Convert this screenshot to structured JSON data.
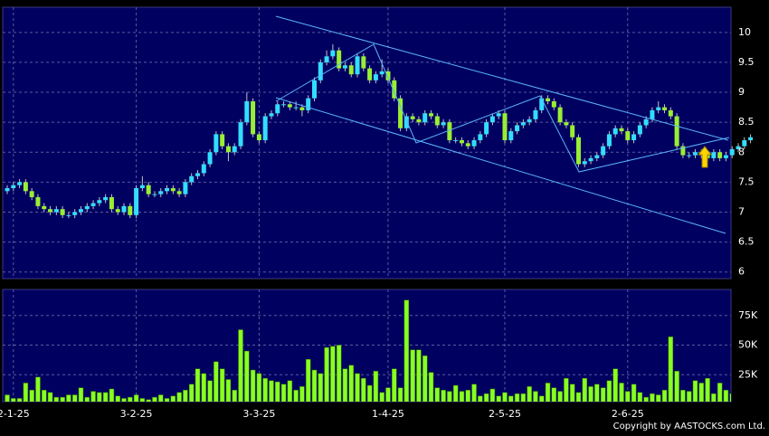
{
  "chart_data": [
    {
      "type": "candlestick",
      "up_color": "#33ddff",
      "down_color": "#99ee33",
      "open": [
        7.35,
        7.4,
        7.45,
        7.5,
        7.35,
        7.25,
        7.1,
        7.05,
        7.0,
        7.05,
        6.95,
        6.95,
        7.0,
        7.05,
        7.1,
        7.15,
        7.2,
        7.25,
        7.05,
        7.0,
        7.1,
        6.95,
        7.4,
        7.45,
        7.3,
        7.3,
        7.35,
        7.4,
        7.35,
        7.3,
        7.5,
        7.6,
        7.65,
        7.8,
        8.0,
        8.3,
        8.1,
        8.0,
        8.1,
        8.5,
        8.85,
        8.3,
        8.2,
        8.6,
        8.65,
        8.8,
        8.8,
        8.75,
        8.75,
        8.7,
        8.9,
        9.2,
        9.5,
        9.6,
        9.7,
        9.4,
        9.45,
        9.3,
        9.6,
        9.4,
        9.2,
        9.3,
        9.35,
        9.2,
        8.9,
        8.4,
        8.6,
        8.55,
        8.5,
        8.65,
        8.6,
        8.45,
        8.5,
        8.2,
        8.2,
        8.15,
        8.1,
        8.2,
        8.3,
        8.5,
        8.6,
        8.65,
        8.2,
        8.35,
        8.45,
        8.5,
        8.55,
        8.7,
        8.9,
        8.85,
        8.75,
        8.5,
        8.45,
        8.25,
        7.8,
        7.85,
        7.9,
        7.95,
        8.1,
        8.3,
        8.4,
        8.35,
        8.2,
        8.3,
        8.45,
        8.55,
        8.7,
        8.75,
        8.7,
        8.6,
        8.1,
        7.95,
        7.95,
        8.0,
        7.95,
        7.9,
        8.0,
        7.9,
        7.95,
        8.05,
        8.1,
        8.2
      ],
      "high": [
        7.45,
        7.5,
        7.55,
        7.55,
        7.4,
        7.3,
        7.15,
        7.1,
        7.1,
        7.1,
        7.0,
        7.05,
        7.1,
        7.15,
        7.2,
        7.25,
        7.3,
        7.3,
        7.1,
        7.15,
        7.15,
        7.45,
        7.6,
        7.5,
        7.35,
        7.4,
        7.45,
        7.45,
        7.4,
        7.55,
        7.65,
        7.7,
        7.85,
        8.05,
        8.35,
        8.35,
        8.15,
        8.15,
        8.55,
        9.0,
        8.9,
        8.35,
        8.65,
        8.7,
        8.85,
        8.85,
        8.85,
        8.85,
        8.8,
        8.95,
        9.25,
        9.55,
        9.7,
        9.8,
        9.75,
        9.5,
        9.5,
        9.65,
        9.65,
        9.45,
        9.35,
        9.55,
        9.4,
        9.25,
        8.95,
        8.65,
        8.65,
        8.6,
        8.7,
        8.7,
        8.65,
        8.55,
        8.55,
        8.25,
        8.25,
        8.2,
        8.25,
        8.35,
        8.55,
        8.65,
        8.7,
        8.7,
        8.4,
        8.5,
        8.55,
        8.6,
        8.75,
        8.95,
        8.95,
        8.9,
        8.8,
        8.55,
        8.5,
        8.3,
        7.9,
        7.95,
        8.0,
        8.15,
        8.35,
        8.45,
        8.45,
        8.4,
        8.35,
        8.5,
        8.6,
        8.75,
        8.85,
        8.8,
        8.75,
        8.65,
        8.15,
        8.0,
        8.05,
        8.05,
        8.0,
        8.05,
        8.05,
        8.0,
        8.1,
        8.15,
        8.25,
        8.3
      ],
      "low": [
        7.3,
        7.35,
        7.4,
        7.3,
        7.2,
        7.05,
        7.0,
        6.95,
        6.95,
        6.9,
        6.9,
        6.9,
        6.95,
        7.0,
        7.05,
        7.1,
        7.15,
        7.0,
        6.95,
        6.95,
        6.9,
        6.9,
        7.35,
        7.25,
        7.25,
        7.25,
        7.3,
        7.3,
        7.25,
        7.25,
        7.45,
        7.55,
        7.6,
        7.75,
        7.95,
        8.05,
        7.85,
        7.95,
        8.05,
        8.45,
        8.25,
        8.15,
        8.15,
        8.55,
        8.6,
        8.75,
        8.7,
        8.7,
        8.6,
        8.65,
        8.85,
        9.15,
        9.45,
        9.55,
        9.35,
        9.35,
        9.25,
        9.25,
        9.35,
        9.15,
        9.15,
        9.25,
        9.15,
        8.85,
        8.35,
        8.35,
        8.5,
        8.45,
        8.45,
        8.55,
        8.4,
        8.4,
        8.15,
        8.15,
        8.1,
        8.05,
        8.05,
        8.15,
        8.25,
        8.45,
        8.55,
        8.15,
        8.15,
        8.3,
        8.4,
        8.45,
        8.5,
        8.65,
        8.8,
        8.7,
        8.45,
        8.4,
        8.2,
        7.75,
        7.75,
        7.8,
        7.85,
        7.9,
        8.05,
        8.25,
        8.3,
        8.15,
        8.15,
        8.25,
        8.4,
        8.5,
        8.65,
        8.65,
        8.55,
        8.05,
        7.9,
        7.9,
        7.9,
        7.9,
        7.85,
        7.85,
        7.85,
        7.85,
        7.9,
        8.0,
        8.05,
        8.15
      ],
      "close": [
        7.4,
        7.45,
        7.5,
        7.35,
        7.25,
        7.1,
        7.05,
        7.0,
        7.05,
        6.95,
        6.95,
        7.0,
        7.05,
        7.1,
        7.15,
        7.2,
        7.25,
        7.05,
        7.0,
        7.1,
        6.95,
        7.4,
        7.45,
        7.3,
        7.3,
        7.35,
        7.4,
        7.35,
        7.3,
        7.5,
        7.6,
        7.65,
        7.8,
        8.0,
        8.3,
        8.1,
        8.0,
        8.1,
        8.5,
        8.85,
        8.3,
        8.2,
        8.6,
        8.65,
        8.8,
        8.8,
        8.75,
        8.75,
        8.7,
        8.9,
        9.2,
        9.5,
        9.6,
        9.7,
        9.4,
        9.45,
        9.3,
        9.6,
        9.4,
        9.2,
        9.3,
        9.35,
        9.2,
        8.9,
        8.4,
        8.6,
        8.55,
        8.5,
        8.65,
        8.6,
        8.45,
        8.5,
        8.2,
        8.2,
        8.15,
        8.1,
        8.2,
        8.3,
        8.5,
        8.6,
        8.65,
        8.2,
        8.35,
        8.45,
        8.5,
        8.55,
        8.7,
        8.9,
        8.85,
        8.75,
        8.5,
        8.45,
        8.25,
        7.8,
        7.85,
        7.9,
        7.95,
        8.1,
        8.3,
        8.4,
        8.35,
        8.2,
        8.3,
        8.45,
        8.55,
        8.7,
        8.75,
        8.7,
        8.6,
        8.1,
        7.95,
        7.95,
        8.0,
        7.95,
        7.9,
        8.0,
        7.9,
        7.95,
        8.05,
        8.1,
        8.2,
        8.25
      ],
      "ylim": [
        5.89,
        10.42
      ],
      "yticks": [
        6,
        6.5,
        7,
        7.5,
        8,
        8.5,
        9,
        9.5,
        10
      ],
      "grid": true
    },
    {
      "type": "bar",
      "color": "#88ff22",
      "categories": [
        null,
        "2-1-25",
        null,
        null,
        null,
        null,
        null,
        null,
        null,
        null,
        null,
        null,
        null,
        null,
        null,
        null,
        null,
        null,
        null,
        null,
        null,
        "3-2-25",
        null,
        null,
        null,
        null,
        null,
        null,
        null,
        null,
        null,
        null,
        null,
        null,
        null,
        null,
        null,
        null,
        null,
        null,
        null,
        "3-3-25",
        null,
        null,
        null,
        null,
        null,
        null,
        null,
        null,
        null,
        null,
        null,
        null,
        null,
        null,
        null,
        null,
        null,
        null,
        null,
        null,
        "1-4-25",
        null,
        null,
        null,
        null,
        null,
        null,
        null,
        null,
        null,
        null,
        null,
        null,
        null,
        null,
        null,
        null,
        null,
        null,
        "2-5-25",
        null,
        null,
        null,
        null,
        null,
        null,
        null,
        null,
        null,
        null,
        null,
        null,
        null,
        null,
        null,
        null,
        null,
        null,
        null,
        "2-6-25",
        null,
        null,
        null,
        null,
        null,
        null,
        null,
        null,
        null,
        null,
        null,
        null,
        null,
        null,
        null,
        null,
        null,
        null,
        null,
        null
      ],
      "values": [
        8000,
        5000,
        5000,
        18000,
        12000,
        23000,
        12000,
        10000,
        6000,
        6000,
        8000,
        8000,
        14000,
        6000,
        11000,
        10000,
        10000,
        13000,
        7000,
        5000,
        6000,
        8000,
        5000,
        4000,
        6000,
        8000,
        5000,
        7000,
        10000,
        12000,
        17000,
        30000,
        26000,
        20000,
        36000,
        30000,
        21000,
        12000,
        63000,
        45000,
        29000,
        26000,
        22000,
        20000,
        19000,
        17000,
        20000,
        12000,
        15000,
        38000,
        29000,
        26000,
        48000,
        49000,
        50000,
        30000,
        33000,
        26000,
        22000,
        16000,
        28000,
        10000,
        14000,
        30000,
        14000,
        88000,
        46000,
        46000,
        41000,
        27000,
        14000,
        12000,
        11000,
        16000,
        11000,
        12000,
        17000,
        7000,
        9000,
        13000,
        7000,
        10000,
        7000,
        9000,
        9000,
        15000,
        11000,
        7000,
        18000,
        14000,
        11000,
        22000,
        17000,
        10000,
        22000,
        15000,
        17000,
        14000,
        20000,
        30000,
        18000,
        11000,
        17000,
        10000,
        6000,
        9000,
        8000,
        12000,
        57000,
        28000,
        12000,
        11000,
        20000,
        18000,
        22000,
        9000,
        18000,
        12000,
        9000,
        22000,
        10000,
        8000
      ],
      "ylim": [
        0,
        97000
      ],
      "yticks": [
        {
          "value": 25000,
          "label": "25K"
        },
        {
          "value": 50000,
          "label": "50K"
        },
        {
          "value": 75000,
          "label": "75K"
        }
      ],
      "grid": true
    }
  ],
  "footer": "Copyright by AASTOCKS.com Ltd."
}
